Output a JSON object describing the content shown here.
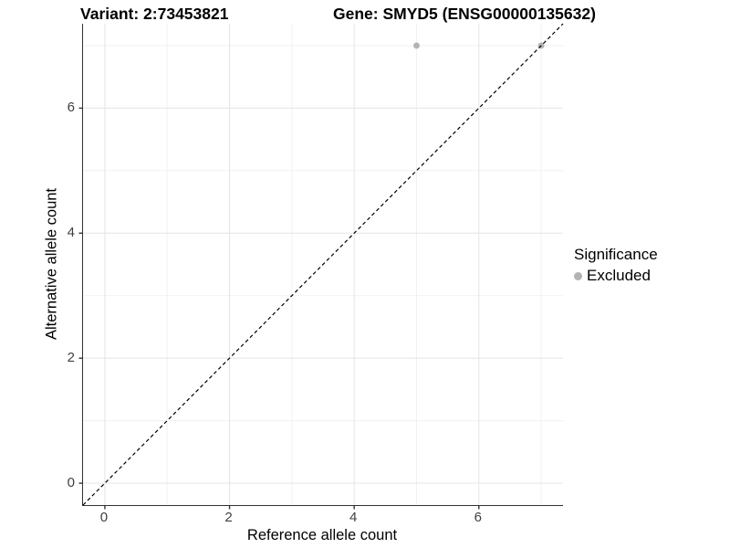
{
  "chart_data": {
    "type": "scatter",
    "title_left": "Variant: 2:73453821",
    "title_right": "Gene: SMYD5 (ENSG00000135632)",
    "xlabel": "Reference allele count",
    "ylabel": "Alternative allele count",
    "xlim": [
      -0.35,
      7.35
    ],
    "ylim": [
      -0.35,
      7.35
    ],
    "x_major_ticks": [
      0,
      2,
      4,
      6
    ],
    "y_major_ticks": [
      0,
      2,
      4,
      6
    ],
    "x_minor_gridlines": [
      1,
      3,
      5,
      7
    ],
    "y_minor_gridlines": [
      1,
      3,
      5,
      7
    ],
    "grid": "on",
    "identity_line": {
      "style": "dashed",
      "slope": 1,
      "intercept": 0,
      "color": "#000000"
    },
    "series": [
      {
        "name": "Excluded",
        "color": "#b3b3b3",
        "points": [
          {
            "x": 5,
            "y": 7
          },
          {
            "x": 7,
            "y": 7
          }
        ]
      }
    ],
    "legend": {
      "position": "right",
      "title": "Significance",
      "items": [
        {
          "label": "Excluded",
          "color": "#b3b3b3"
        }
      ]
    },
    "colors": {
      "grid_major": "#e4e4e4",
      "grid_minor": "#f1f1f1",
      "axis_line": "#333333",
      "tick_label": "#404040"
    }
  }
}
